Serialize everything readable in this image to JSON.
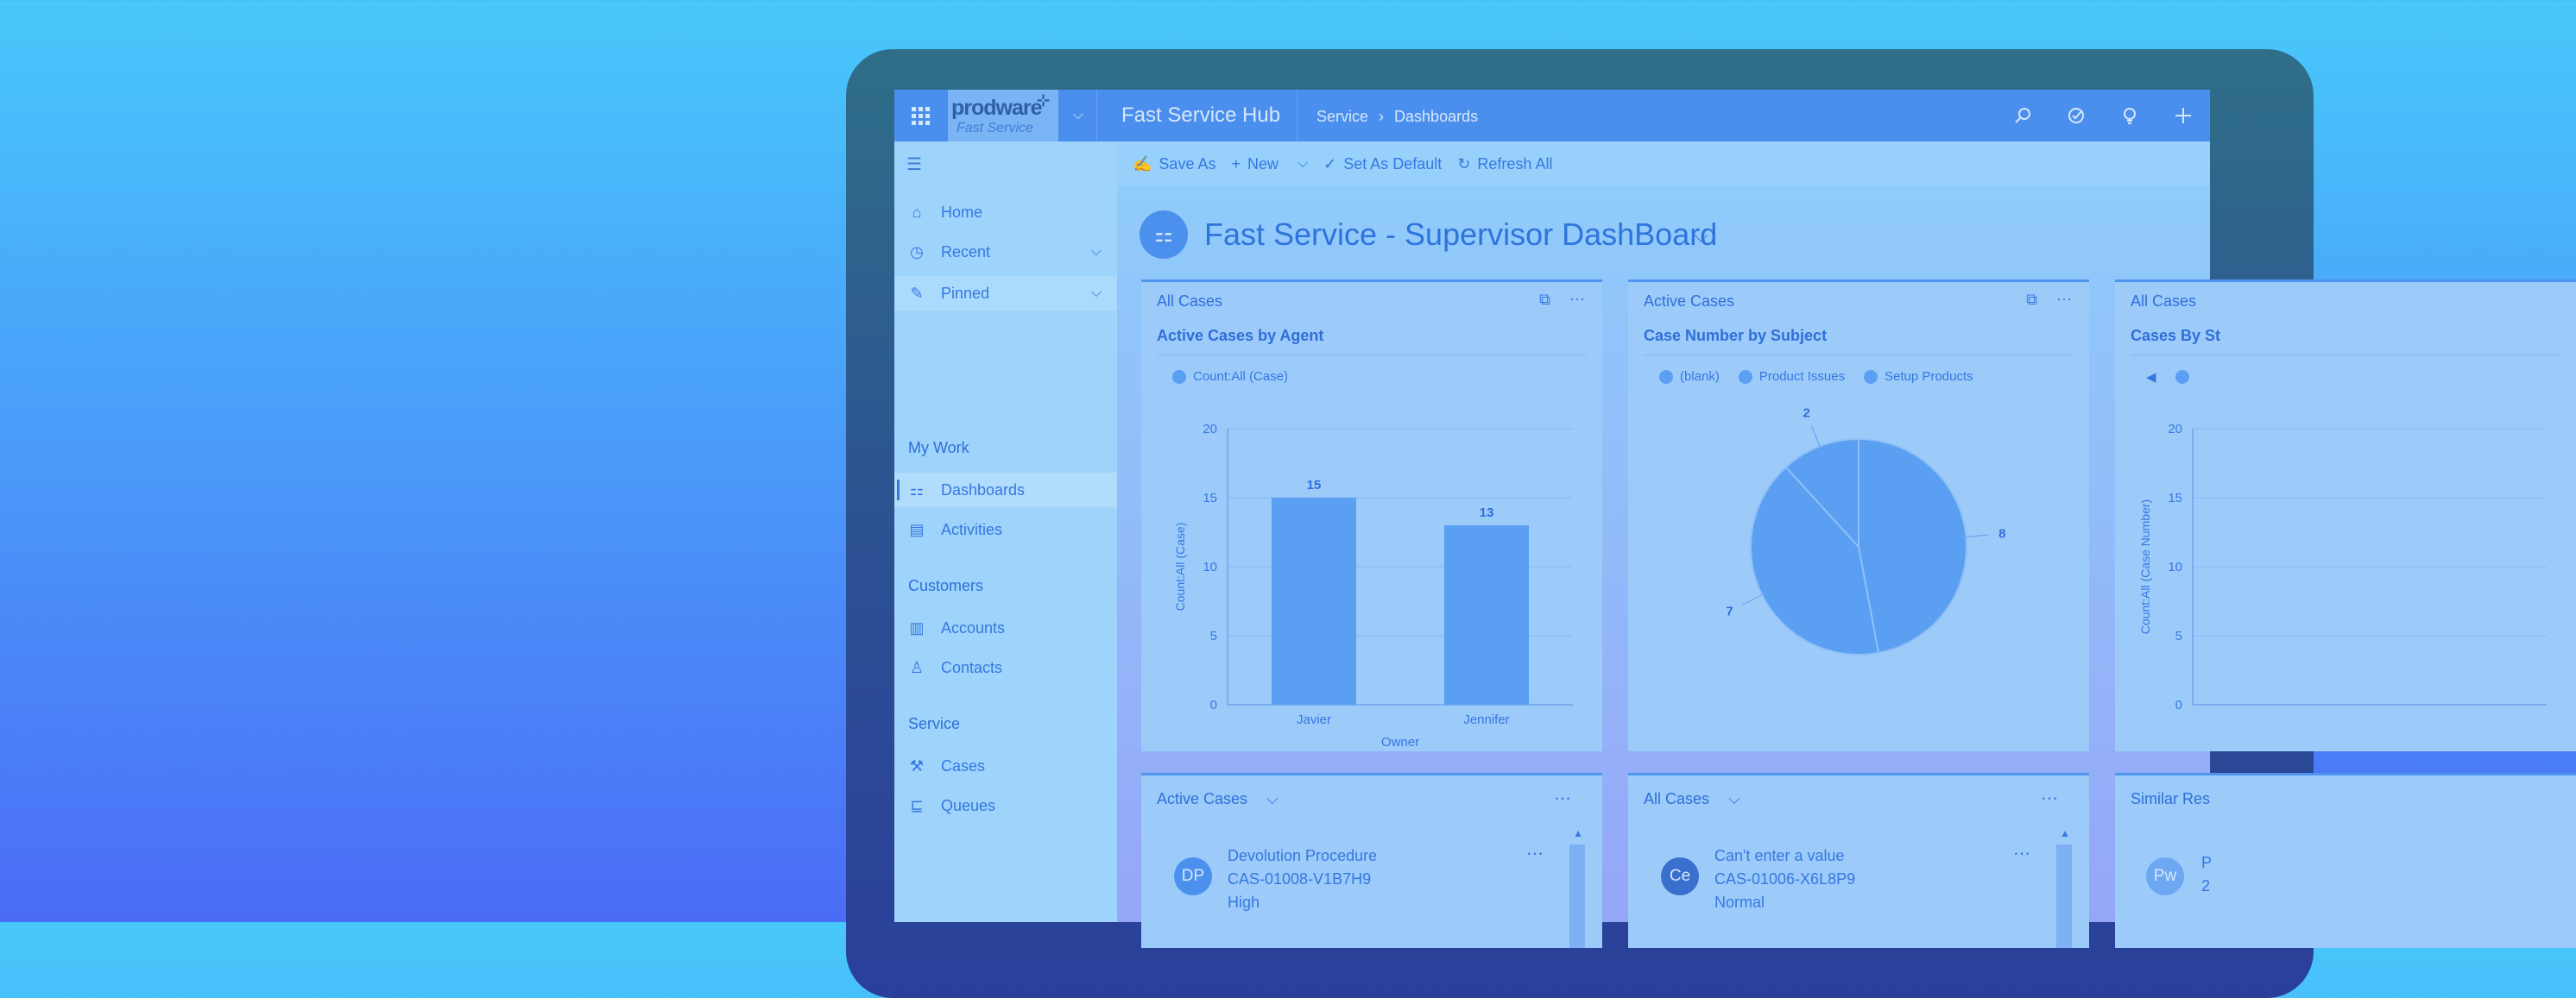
{
  "topbar": {
    "logo_text": "prodware",
    "logo_sub": "Fast Service",
    "app_title": "Fast Service Hub",
    "breadcrumb": [
      "Service",
      "Dashboards"
    ],
    "icons": [
      "search-icon",
      "task-check-icon",
      "lightbulb-icon",
      "plus-icon"
    ]
  },
  "sidebar": {
    "items": [
      {
        "label": "Home",
        "icon": "home-icon"
      },
      {
        "label": "Recent",
        "icon": "clock-icon"
      },
      {
        "label": "Pinned",
        "icon": "pin-icon"
      }
    ],
    "groups": [
      {
        "title": "My Work",
        "items": [
          {
            "label": "Dashboards",
            "icon": "dashboard-icon"
          },
          {
            "label": "Activities",
            "icon": "clipboard-icon"
          }
        ]
      },
      {
        "title": "Customers",
        "items": [
          {
            "label": "Accounts",
            "icon": "building-icon"
          },
          {
            "label": "Contacts",
            "icon": "person-icon"
          }
        ]
      },
      {
        "title": "Service",
        "items": [
          {
            "label": "Cases",
            "icon": "wrench-icon"
          },
          {
            "label": "Queues",
            "icon": "queue-icon"
          }
        ]
      }
    ]
  },
  "commands": {
    "save_as": "Save As",
    "new": "New",
    "set_default": "Set As Default",
    "refresh_all": "Refresh All"
  },
  "dashboard": {
    "title": "Fast Service - Supervisor DashBoard"
  },
  "panels": {
    "p1": {
      "view": "All Cases",
      "chart_title": "Active Cases by Agent"
    },
    "p2": {
      "view": "Active Cases",
      "chart_title": "Case Number by Subject"
    },
    "p3": {
      "view": "All Cases",
      "chart_title": "Cases By St"
    }
  },
  "chart_data": [
    {
      "type": "bar",
      "title": "Active Cases by Agent",
      "categories": [
        "Javier",
        "Jennifer"
      ],
      "series": [
        {
          "name": "Count:All (Case)",
          "values": [
            15,
            13
          ]
        }
      ],
      "xlabel": "Owner",
      "ylabel": "Count:All (Case)",
      "ylim": [
        0,
        20
      ],
      "yticks": [
        0,
        5,
        10,
        15,
        20
      ],
      "grid": true,
      "legend": "top-left"
    },
    {
      "type": "pie",
      "title": "Case Number by Subject",
      "categories": [
        "(blank)",
        "Product Issues",
        "Setup Products"
      ],
      "values": [
        8,
        7,
        2
      ],
      "legend": "top-left"
    },
    {
      "type": "bar",
      "title": "Cases By St",
      "ylabel": "Count:All (Case Number)",
      "ylim": [
        0,
        20
      ],
      "yticks": [
        0,
        5,
        10,
        15,
        20
      ],
      "legend": "top-left"
    }
  ],
  "lists": {
    "l1": {
      "title": "Active Cases",
      "record": {
        "initials": "DP",
        "title": "Devolution Procedure",
        "number": "CAS-01008-V1B7H9",
        "priority": "High",
        "avatar_color": "#4c90ee"
      }
    },
    "l2": {
      "title": "All Cases",
      "record": {
        "initials": "Ce",
        "title": "Can't enter a value",
        "number": "CAS-01006-X6L8P9",
        "priority": "Normal",
        "avatar_color": "#3a6fce"
      }
    },
    "l3": {
      "title": "Similar Res",
      "record": {
        "initials": "Pw",
        "title": "P",
        "number": "2"
      }
    }
  }
}
